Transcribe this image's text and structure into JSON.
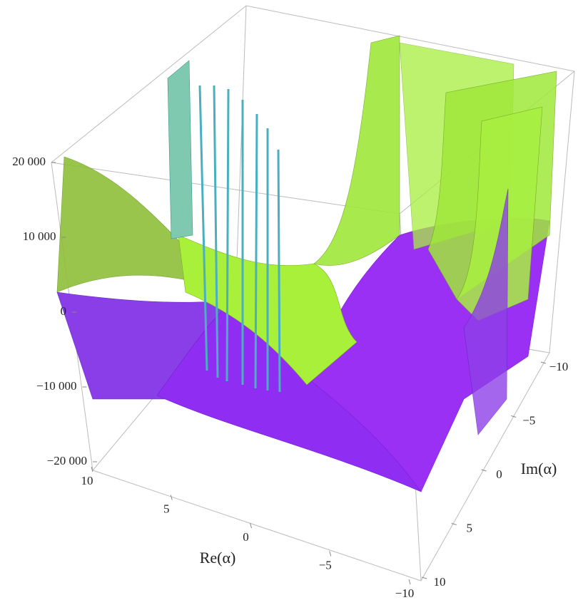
{
  "chart_data": {
    "type": "surface3d",
    "x_label": "Re(α)",
    "y_label": "Im(α)",
    "xlim": [
      -10,
      10
    ],
    "ylim": [
      -10,
      10
    ],
    "zlim": [
      -20000,
      20000
    ],
    "xticks": [
      {
        "value": 10,
        "label": "10"
      },
      {
        "value": 5,
        "label": "5"
      },
      {
        "value": 0,
        "label": "0"
      },
      {
        "value": -5,
        "label": "−5"
      },
      {
        "value": -10,
        "label": "−10"
      }
    ],
    "yticks": [
      {
        "value": -10,
        "label": "−10"
      },
      {
        "value": -5,
        "label": "−5"
      },
      {
        "value": 0,
        "label": "0"
      },
      {
        "value": 5,
        "label": "5"
      },
      {
        "value": 10,
        "label": "10"
      }
    ],
    "zticks": [
      {
        "value": 20000,
        "label": "20 000"
      },
      {
        "value": 10000,
        "label": "10 000"
      },
      {
        "value": 0,
        "label": "0"
      },
      {
        "value": -10000,
        "label": "−10 000"
      },
      {
        "value": -20000,
        "label": "−20 000"
      }
    ]
  }
}
